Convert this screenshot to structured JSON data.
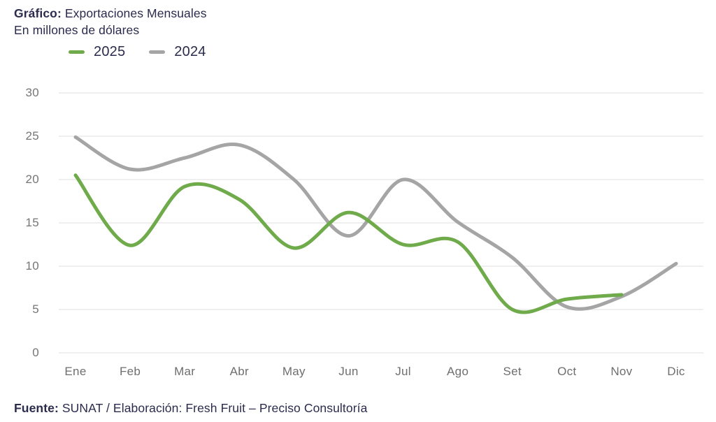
{
  "header": {
    "title_prefix": "Gráfico:",
    "title_rest": " Exportaciones Mensuales",
    "subtitle": "En millones de dólares"
  },
  "legend": {
    "items": [
      {
        "label": "2025",
        "color": "#6faa4b"
      },
      {
        "label": "2024",
        "color": "#a5a5a5"
      }
    ]
  },
  "footer": {
    "source_prefix": "Fuente:",
    "source_rest": " SUNAT / Elaboración: Fresh Fruit – Preciso Consultoría"
  },
  "colors": {
    "green_line": "#6faa4b",
    "gray_line": "#a5a5a5",
    "navy_text": "#2b2b4e",
    "gridline": "#e5e5e5",
    "y_label": "#767676",
    "x_label": "#6e6e6e"
  },
  "chart_data": {
    "type": "line",
    "title": "Gráfico: Exportaciones Mensuales",
    "subtitle": "En millones de dólares",
    "xlabel": "",
    "ylabel": "",
    "ylim": [
      0,
      30
    ],
    "yticks": [
      0,
      5,
      10,
      15,
      20,
      25,
      30
    ],
    "grid": true,
    "legend_position": "top-left",
    "categories": [
      "Ene",
      "Feb",
      "Mar",
      "Abr",
      "May",
      "Jun",
      "Jul",
      "Ago",
      "Set",
      "Oct",
      "Nov",
      "Dic"
    ],
    "series": [
      {
        "name": "2025",
        "color": "#6faa4b",
        "values": [
          20.5,
          12.4,
          19.2,
          17.7,
          12.1,
          16.2,
          12.5,
          12.8,
          5.0,
          6.2,
          6.7,
          null
        ]
      },
      {
        "name": "2024",
        "color": "#a5a5a5",
        "values": [
          24.9,
          21.2,
          22.5,
          24.0,
          20.0,
          13.5,
          20.0,
          15.1,
          11.0,
          5.3,
          6.5,
          10.3
        ]
      }
    ]
  }
}
